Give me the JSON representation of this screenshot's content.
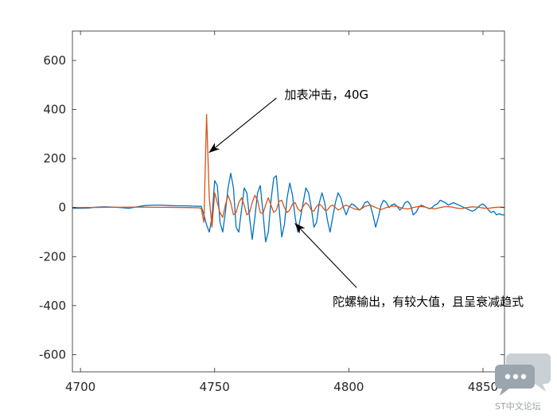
{
  "chart_data": {
    "type": "line",
    "xlim": [
      4697,
      4858
    ],
    "ylim": [
      -670,
      720
    ],
    "xticks": [
      4700,
      4750,
      4800,
      4850
    ],
    "yticks": [
      -600,
      -400,
      -200,
      0,
      200,
      400,
      600
    ],
    "grid": false,
    "series": [
      {
        "color": "#0072BD",
        "x": [
          4697,
          4700,
          4703,
          4706,
          4709,
          4712,
          4715,
          4718,
          4721,
          4724,
          4727,
          4730,
          4733,
          4736,
          4739,
          4742,
          4745,
          4746,
          4747,
          4748,
          4749,
          4750,
          4751,
          4752,
          4753,
          4754,
          4755,
          4756,
          4757,
          4758,
          4759,
          4760,
          4761,
          4762,
          4763,
          4764,
          4765,
          4766,
          4767,
          4768,
          4769,
          4770,
          4771,
          4772,
          4773,
          4774,
          4775,
          4776,
          4777,
          4778,
          4779,
          4780,
          4781,
          4782,
          4783,
          4784,
          4785,
          4786,
          4787,
          4788,
          4789,
          4790,
          4791,
          4792,
          4793,
          4794,
          4795,
          4796,
          4797,
          4798,
          4799,
          4800,
          4801,
          4802,
          4803,
          4804,
          4805,
          4806,
          4807,
          4808,
          4809,
          4810,
          4811,
          4812,
          4813,
          4814,
          4815,
          4816,
          4817,
          4818,
          4819,
          4820,
          4821,
          4822,
          4823,
          4824,
          4825,
          4826,
          4827,
          4828,
          4829,
          4830,
          4831,
          4832,
          4833,
          4834,
          4835,
          4836,
          4837,
          4838,
          4839,
          4840,
          4841,
          4842,
          4843,
          4844,
          4845,
          4846,
          4847,
          4848,
          4849,
          4850,
          4851,
          4852,
          4853,
          4854,
          4855,
          4856,
          4857,
          4858
        ],
        "y": [
          -3,
          -3,
          -2,
          2,
          3,
          2,
          0,
          -3,
          3,
          8,
          10,
          10,
          8,
          7,
          7,
          6,
          5,
          -30,
          -70,
          -100,
          -40,
          110,
          90,
          -60,
          -100,
          -20,
          80,
          140,
          80,
          -80,
          -100,
          -10,
          80,
          60,
          -40,
          -130,
          -40,
          60,
          90,
          -20,
          -140,
          -100,
          30,
          120,
          130,
          0,
          -120,
          -70,
          40,
          100,
          50,
          -40,
          -100,
          -40,
          20,
          80,
          60,
          0,
          -80,
          -60,
          20,
          60,
          20,
          -50,
          -100,
          -40,
          20,
          60,
          40,
          0,
          -30,
          0,
          15,
          10,
          0,
          -10,
          0,
          20,
          25,
          10,
          -30,
          -80,
          -40,
          10,
          30,
          20,
          0,
          10,
          15,
          5,
          -10,
          0,
          20,
          25,
          10,
          -30,
          -20,
          0,
          10,
          5,
          0,
          -5,
          0,
          10,
          15,
          30,
          25,
          20,
          10,
          15,
          20,
          15,
          10,
          5,
          0,
          -5,
          -10,
          -15,
          -10,
          0,
          10,
          15,
          5,
          -10,
          -20,
          -15,
          -30,
          -25,
          -30,
          -30
        ]
      },
      {
        "color": "#D95319",
        "x": [
          4697,
          4700,
          4710,
          4720,
          4730,
          4740,
          4744,
          4745,
          4746,
          4747,
          4748,
          4749,
          4750,
          4751,
          4752,
          4753,
          4754,
          4755,
          4756,
          4757,
          4758,
          4759,
          4760,
          4761,
          4762,
          4763,
          4764,
          4765,
          4766,
          4767,
          4768,
          4769,
          4770,
          4771,
          4772,
          4773,
          4774,
          4775,
          4776,
          4777,
          4778,
          4779,
          4780,
          4781,
          4782,
          4783,
          4784,
          4785,
          4786,
          4787,
          4788,
          4789,
          4790,
          4791,
          4792,
          4793,
          4794,
          4795,
          4796,
          4797,
          4798,
          4799,
          4800,
          4802,
          4804,
          4806,
          4808,
          4810,
          4812,
          4814,
          4816,
          4818,
          4820,
          4822,
          4824,
          4826,
          4828,
          4830,
          4832,
          4834,
          4836,
          4838,
          4840,
          4842,
          4844,
          4846,
          4848,
          4850,
          4852,
          4854,
          4856,
          4858
        ],
        "y": [
          0,
          0,
          1,
          2,
          1,
          0,
          -1,
          -3,
          -60,
          380,
          40,
          -80,
          60,
          20,
          -20,
          -40,
          10,
          50,
          20,
          -30,
          -20,
          20,
          40,
          10,
          -30,
          -20,
          20,
          50,
          30,
          -20,
          -25,
          10,
          40,
          10,
          -20,
          -10,
          25,
          30,
          0,
          -20,
          -10,
          15,
          20,
          -5,
          -15,
          5,
          20,
          10,
          -10,
          -15,
          5,
          15,
          5,
          -10,
          -10,
          5,
          10,
          0,
          -10,
          -5,
          5,
          10,
          5,
          -5,
          -10,
          5,
          10,
          0,
          -8,
          0,
          6,
          5,
          -3,
          -6,
          0,
          5,
          3,
          -3,
          -5,
          0,
          4,
          3,
          -2,
          -4,
          0,
          3,
          2,
          -2,
          -3,
          0,
          2,
          1
        ]
      }
    ],
    "annotations": [
      {
        "text": "加表冲击，40G",
        "point": [
          4748,
          225
        ],
        "text_anchor": [
          4776,
          460
        ]
      },
      {
        "text": "陀螺输出，有较大值，且呈衰减趋式",
        "point": [
          4780,
          -65
        ],
        "text_anchor": [
          4794,
          -385
        ]
      }
    ]
  },
  "watermark": {
    "text": "ST中文论坛",
    "icon": "chat-bubbles-icon"
  }
}
